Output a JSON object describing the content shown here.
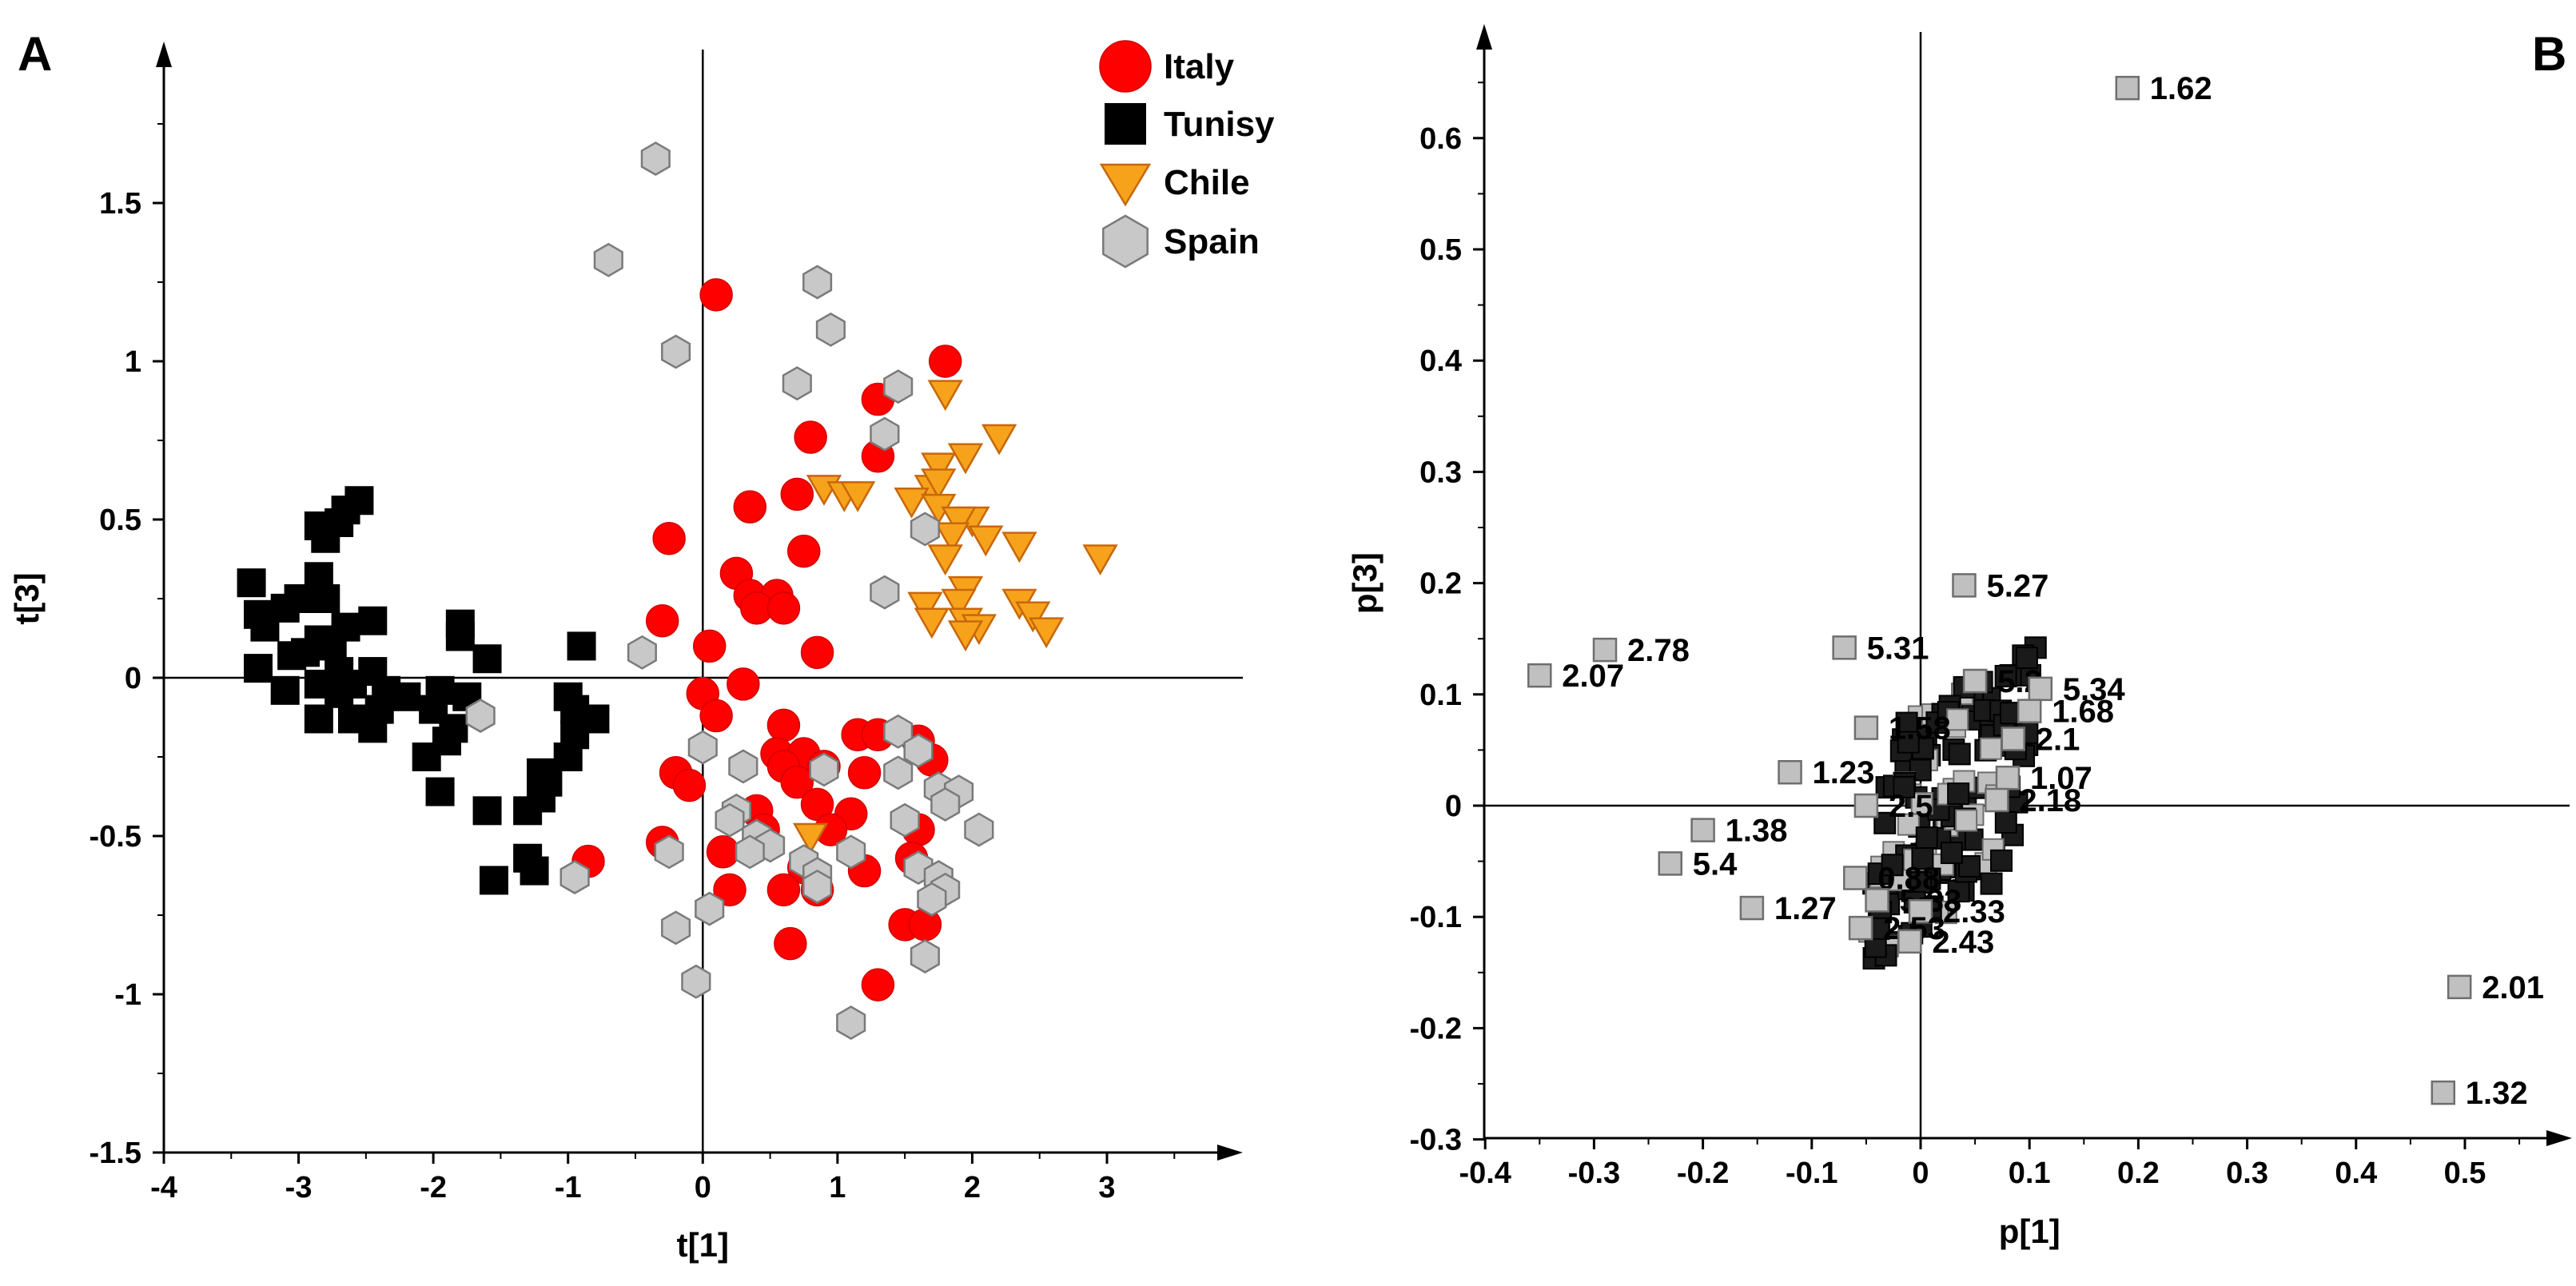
{
  "colors": {
    "italy": "#ff0000",
    "tunisy": "#000000",
    "chile": "#f7a21b",
    "chile_stroke": "#c8670a",
    "spain": "#c8c8c8",
    "spain_stroke": "#7a7a7a",
    "loading": "#c0c0c0",
    "loading_stroke": "#6e6e6e"
  },
  "chart_data": [
    {
      "panel": "A",
      "type": "scatter",
      "xlabel": "t[1]",
      "ylabel": "t[3]",
      "xlim": [
        -4,
        3.9
      ],
      "ylim": [
        -1.5,
        1.95
      ],
      "xticks": [
        -4,
        -3,
        -2,
        -1,
        0,
        1,
        2,
        3
      ],
      "yticks": [
        -1.5,
        -1,
        -0.5,
        0,
        0.5,
        1,
        1.5
      ],
      "legend_position": "top-right",
      "series": [
        {
          "name": "Italy",
          "marker": "circle",
          "points": [
            [
              0.1,
              1.21
            ],
            [
              1.8,
              1.0
            ],
            [
              1.3,
              0.88
            ],
            [
              0.8,
              0.76
            ],
            [
              1.3,
              0.7
            ],
            [
              0.7,
              0.58
            ],
            [
              0.35,
              0.54
            ],
            [
              -0.25,
              0.44
            ],
            [
              0.75,
              0.4
            ],
            [
              0.25,
              0.33
            ],
            [
              0.35,
              0.26
            ],
            [
              0.55,
              0.26
            ],
            [
              0.4,
              0.22
            ],
            [
              0.6,
              0.22
            ],
            [
              -0.3,
              0.18
            ],
            [
              0.85,
              0.08
            ],
            [
              0.05,
              0.1
            ],
            [
              0.3,
              -0.02
            ],
            [
              0.0,
              -0.05
            ],
            [
              0.1,
              -0.12
            ],
            [
              0.6,
              -0.15
            ],
            [
              1.15,
              -0.18
            ],
            [
              1.3,
              -0.18
            ],
            [
              1.6,
              -0.2
            ],
            [
              0.55,
              -0.24
            ],
            [
              0.75,
              -0.24
            ],
            [
              1.7,
              -0.26
            ],
            [
              0.6,
              -0.28
            ],
            [
              0.9,
              -0.28
            ],
            [
              1.2,
              -0.3
            ],
            [
              -0.2,
              -0.3
            ],
            [
              -0.1,
              -0.34
            ],
            [
              0.7,
              -0.33
            ],
            [
              0.85,
              -0.4
            ],
            [
              0.4,
              -0.42
            ],
            [
              1.1,
              -0.43
            ],
            [
              0.45,
              -0.48
            ],
            [
              0.95,
              -0.48
            ],
            [
              1.6,
              -0.48
            ],
            [
              -0.3,
              -0.52
            ],
            [
              0.15,
              -0.55
            ],
            [
              0.75,
              -0.6
            ],
            [
              1.2,
              -0.61
            ],
            [
              0.2,
              -0.67
            ],
            [
              0.6,
              -0.67
            ],
            [
              0.85,
              -0.67
            ],
            [
              1.5,
              -0.78
            ],
            [
              1.65,
              -0.78
            ],
            [
              0.65,
              -0.84
            ],
            [
              1.3,
              -0.97
            ],
            [
              -0.85,
              -0.58
            ],
            [
              1.55,
              -0.57
            ]
          ]
        },
        {
          "name": "Tunisy",
          "marker": "square",
          "points": [
            [
              -2.55,
              0.56
            ],
            [
              -2.65,
              0.53
            ],
            [
              -2.7,
              0.49
            ],
            [
              -2.85,
              0.48
            ],
            [
              -2.8,
              0.44
            ],
            [
              -3.35,
              0.3
            ],
            [
              -2.85,
              0.32
            ],
            [
              -3.0,
              0.25
            ],
            [
              -2.8,
              0.25
            ],
            [
              -3.1,
              0.22
            ],
            [
              -3.3,
              0.2
            ],
            [
              -3.25,
              0.16
            ],
            [
              -2.65,
              0.16
            ],
            [
              -2.45,
              0.18
            ],
            [
              -1.8,
              0.17
            ],
            [
              -1.8,
              0.13
            ],
            [
              -2.85,
              0.12
            ],
            [
              -2.75,
              0.1
            ],
            [
              -2.95,
              0.08
            ],
            [
              -3.05,
              0.07
            ],
            [
              -3.3,
              0.03
            ],
            [
              -2.7,
              0.02
            ],
            [
              -2.45,
              0.02
            ],
            [
              -1.6,
              0.06
            ],
            [
              -0.9,
              0.1
            ],
            [
              -2.85,
              -0.02
            ],
            [
              -2.6,
              -0.02
            ],
            [
              -2.35,
              -0.04
            ],
            [
              -2.2,
              -0.06
            ],
            [
              -1.95,
              -0.04
            ],
            [
              -1.75,
              -0.06
            ],
            [
              -2.4,
              -0.1
            ],
            [
              -2.0,
              -0.1
            ],
            [
              -1.0,
              -0.06
            ],
            [
              -0.95,
              -0.1
            ],
            [
              -2.85,
              -0.13
            ],
            [
              -2.6,
              -0.13
            ],
            [
              -2.45,
              -0.16
            ],
            [
              -1.85,
              -0.16
            ],
            [
              -0.8,
              -0.13
            ],
            [
              -1.9,
              -0.2
            ],
            [
              -0.95,
              -0.18
            ],
            [
              -2.05,
              -0.25
            ],
            [
              -1.0,
              -0.25
            ],
            [
              -1.2,
              -0.3
            ],
            [
              -1.15,
              -0.33
            ],
            [
              -1.2,
              -0.38
            ],
            [
              -1.95,
              -0.36
            ],
            [
              -1.3,
              -0.42
            ],
            [
              -1.6,
              -0.42
            ],
            [
              -1.3,
              -0.57
            ],
            [
              -1.25,
              -0.61
            ],
            [
              -1.55,
              -0.64
            ],
            [
              -3.1,
              -0.04
            ],
            [
              -2.7,
              -0.05
            ]
          ]
        },
        {
          "name": "Chile",
          "marker": "triangle-down",
          "points": [
            [
              1.8,
              0.9
            ],
            [
              1.75,
              0.67
            ],
            [
              1.7,
              0.6
            ],
            [
              1.75,
              0.62
            ],
            [
              2.2,
              0.76
            ],
            [
              1.95,
              0.7
            ],
            [
              0.9,
              0.6
            ],
            [
              1.05,
              0.58
            ],
            [
              1.15,
              0.58
            ],
            [
              1.55,
              0.56
            ],
            [
              1.75,
              0.54
            ],
            [
              2.0,
              0.5
            ],
            [
              1.9,
              0.5
            ],
            [
              1.85,
              0.45
            ],
            [
              2.1,
              0.44
            ],
            [
              2.35,
              0.42
            ],
            [
              2.95,
              0.38
            ],
            [
              1.8,
              0.38
            ],
            [
              1.95,
              0.28
            ],
            [
              1.9,
              0.24
            ],
            [
              1.65,
              0.23
            ],
            [
              2.35,
              0.24
            ],
            [
              2.45,
              0.2
            ],
            [
              1.7,
              0.18
            ],
            [
              1.95,
              0.18
            ],
            [
              2.05,
              0.16
            ],
            [
              2.55,
              0.15
            ],
            [
              1.95,
              0.14
            ],
            [
              0.8,
              -0.5
            ]
          ]
        },
        {
          "name": "Spain",
          "marker": "hexagon",
          "points": [
            [
              -0.35,
              1.64
            ],
            [
              -0.7,
              1.32
            ],
            [
              0.85,
              1.25
            ],
            [
              0.95,
              1.1
            ],
            [
              -0.2,
              1.03
            ],
            [
              0.7,
              0.93
            ],
            [
              1.45,
              0.92
            ],
            [
              1.35,
              0.77
            ],
            [
              1.65,
              0.47
            ],
            [
              1.35,
              0.27
            ],
            [
              -0.45,
              0.08
            ],
            [
              -1.65,
              -0.12
            ],
            [
              0.0,
              -0.22
            ],
            [
              0.3,
              -0.28
            ],
            [
              0.9,
              -0.29
            ],
            [
              1.45,
              -0.17
            ],
            [
              1.6,
              -0.23
            ],
            [
              1.45,
              -0.3
            ],
            [
              1.75,
              -0.35
            ],
            [
              1.9,
              -0.36
            ],
            [
              1.8,
              -0.4
            ],
            [
              0.25,
              -0.42
            ],
            [
              0.2,
              -0.45
            ],
            [
              0.4,
              -0.5
            ],
            [
              0.5,
              -0.53
            ],
            [
              0.35,
              -0.55
            ],
            [
              1.1,
              -0.55
            ],
            [
              1.5,
              -0.45
            ],
            [
              2.05,
              -0.48
            ],
            [
              0.75,
              -0.58
            ],
            [
              0.85,
              -0.62
            ],
            [
              0.85,
              -0.66
            ],
            [
              1.6,
              -0.6
            ],
            [
              1.75,
              -0.63
            ],
            [
              1.8,
              -0.67
            ],
            [
              1.7,
              -0.7
            ],
            [
              0.05,
              -0.73
            ],
            [
              -0.2,
              -0.79
            ],
            [
              1.65,
              -0.88
            ],
            [
              -0.05,
              -0.96
            ],
            [
              1.1,
              -1.09
            ],
            [
              -0.95,
              -0.63
            ],
            [
              -0.25,
              -0.55
            ]
          ]
        }
      ]
    },
    {
      "panel": "B",
      "type": "scatter",
      "xlabel": "p[1]",
      "ylabel": "p[3]",
      "xlim": [
        -0.4,
        0.6
      ],
      "ylim": [
        -0.3,
        0.68
      ],
      "xticks": [
        -0.4,
        -0.3,
        -0.2,
        -0.1,
        0,
        0.1,
        0.2,
        0.3,
        0.4,
        0.5
      ],
      "yticks": [
        -0.3,
        -0.2,
        -0.1,
        0,
        0.1,
        0.2,
        0.3,
        0.4,
        0.5,
        0.6
      ],
      "labeled_points": [
        {
          "label": "1.62",
          "x": 0.19,
          "y": 0.645
        },
        {
          "label": "5.27",
          "x": 0.04,
          "y": 0.198
        },
        {
          "label": "2.78",
          "x": -0.29,
          "y": 0.14
        },
        {
          "label": "2.07",
          "x": -0.35,
          "y": 0.117
        },
        {
          "label": "5.31",
          "x": -0.07,
          "y": 0.142
        },
        {
          "label": "5.2",
          "x": 0.05,
          "y": 0.112
        },
        {
          "label": "5.34",
          "x": 0.11,
          "y": 0.105
        },
        {
          "label": "1.68",
          "x": 0.1,
          "y": 0.085
        },
        {
          "label": "1.58",
          "x": -0.05,
          "y": 0.07
        },
        {
          "label": "2.1",
          "x": 0.085,
          "y": 0.06
        },
        {
          "label": "1.23",
          "x": -0.12,
          "y": 0.03
        },
        {
          "label": "1.07",
          "x": 0.08,
          "y": 0.025
        },
        {
          "label": "2.18",
          "x": 0.07,
          "y": 0.005
        },
        {
          "label": "2.5",
          "x": -0.05,
          "y": 0.0
        },
        {
          "label": "1.38",
          "x": -0.2,
          "y": -0.022
        },
        {
          "label": "5.4",
          "x": -0.23,
          "y": -0.052
        },
        {
          "label": "0.88",
          "x": -0.06,
          "y": -0.065
        },
        {
          "label": "5.33",
          "x": -0.04,
          "y": -0.085
        },
        {
          "label": "1.27",
          "x": -0.155,
          "y": -0.092
        },
        {
          "label": "2.33",
          "x": 0.0,
          "y": -0.095
        },
        {
          "label": "2.53",
          "x": -0.055,
          "y": -0.11
        },
        {
          "label": "2.43",
          "x": -0.01,
          "y": -0.122
        },
        {
          "label": "2.01",
          "x": 0.495,
          "y": -0.163
        },
        {
          "label": "1.32",
          "x": 0.48,
          "y": -0.258
        }
      ]
    }
  ],
  "panels": {
    "a_label": "A",
    "b_label": "B"
  }
}
